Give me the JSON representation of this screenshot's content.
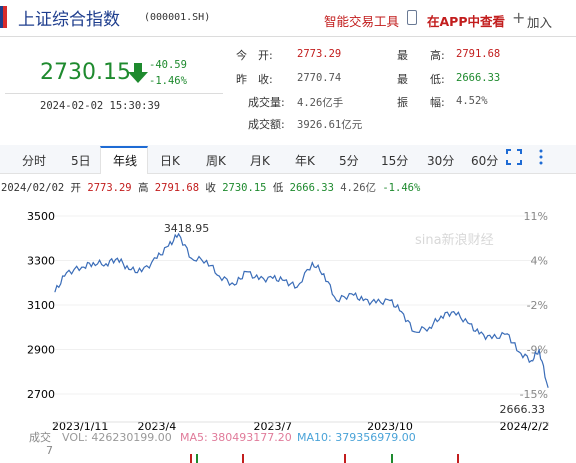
{
  "header": {
    "title": "上证综合指数",
    "code": "(000001.SH)",
    "smart_trade": "智能交易工具",
    "app_view": "在APP中查看",
    "join": "加入"
  },
  "quote": {
    "price": "2730.15",
    "change": "-40.59",
    "change_pct": "-1.46%",
    "datetime": "2024-02-02 15:30:39",
    "open_label": "今　开:",
    "open": "2773.29",
    "prev_close_label": "昨　收:",
    "prev_close": "2770.74",
    "volume_label": "成交量:",
    "volume": "4.26亿手",
    "amount_label": "成交额:",
    "amount": "3926.61亿元",
    "high_label": "最　　高:",
    "high": "2791.68",
    "low_label": "最　　低:",
    "low": "2666.33",
    "amplitude_label": "振　　幅:",
    "amplitude": "4.52%"
  },
  "tabs": [
    "分时",
    "5日",
    "年线",
    "日K",
    "周K",
    "月K",
    "年K",
    "5分",
    "15分",
    "30分",
    "60分"
  ],
  "active_tab": "年线",
  "info_line": {
    "date": "2024/02/02",
    "open_label": "开",
    "open": "2773.29",
    "high_label": "高",
    "high": "2791.68",
    "close_label": "收",
    "close": "2730.15",
    "low_label": "低",
    "low": "2666.33",
    "vol": "4.26亿",
    "pct": "-1.46%"
  },
  "chart_data": {
    "type": "line",
    "title": "",
    "y_ticks": [
      "3500",
      "3300",
      "3100",
      "2900",
      "2700"
    ],
    "pct_ticks": [
      "11%",
      "4%",
      "-2%",
      "-9%",
      "-15%"
    ],
    "x_ticks": [
      "2023/1/11",
      "2023/4",
      "2023/7",
      "2023/10",
      "2024/2/2"
    ],
    "ylim": [
      2600,
      3520
    ],
    "max_label": "3418.95",
    "min_label": "2666.33",
    "x": [
      "2023-01-11",
      "2023-01-20",
      "2023-02-01",
      "2023-02-10",
      "2023-02-20",
      "2023-03-01",
      "2023-03-10",
      "2023-03-20",
      "2023-04-01",
      "2023-04-10",
      "2023-04-18",
      "2023-04-28",
      "2023-05-10",
      "2023-05-20",
      "2023-06-01",
      "2023-06-10",
      "2023-06-20",
      "2023-07-01",
      "2023-07-10",
      "2023-07-20",
      "2023-08-01",
      "2023-08-10",
      "2023-08-20",
      "2023-09-01",
      "2023-09-10",
      "2023-09-20",
      "2023-10-01",
      "2023-10-10",
      "2023-10-20",
      "2023-11-01",
      "2023-11-10",
      "2023-11-20",
      "2023-12-01",
      "2023-12-10",
      "2023-12-20",
      "2024-01-01",
      "2024-01-10",
      "2024-01-20",
      "2024-01-26",
      "2024-02-02"
    ],
    "values": [
      3160,
      3245,
      3270,
      3290,
      3285,
      3310,
      3260,
      3250,
      3310,
      3365,
      3418.95,
      3310,
      3300,
      3230,
      3190,
      3250,
      3215,
      3220,
      3210,
      3180,
      3290,
      3240,
      3120,
      3150,
      3120,
      3110,
      3120,
      3070,
      2980,
      3000,
      3050,
      3070,
      3020,
      2970,
      2950,
      2970,
      2890,
      2850,
      2900,
      2730.15
    ],
    "volume_label": "成交",
    "volume_suffix": "7",
    "vol": "VOL: 426230199.00",
    "ma5": "MA5: 380493177.20",
    "ma10": "MA10: 379356979.00",
    "watermark": "sina新浪财经",
    "colors": {
      "line": "#3b6db8",
      "up": "#c21d1d",
      "down": "#1e8a2e"
    }
  }
}
